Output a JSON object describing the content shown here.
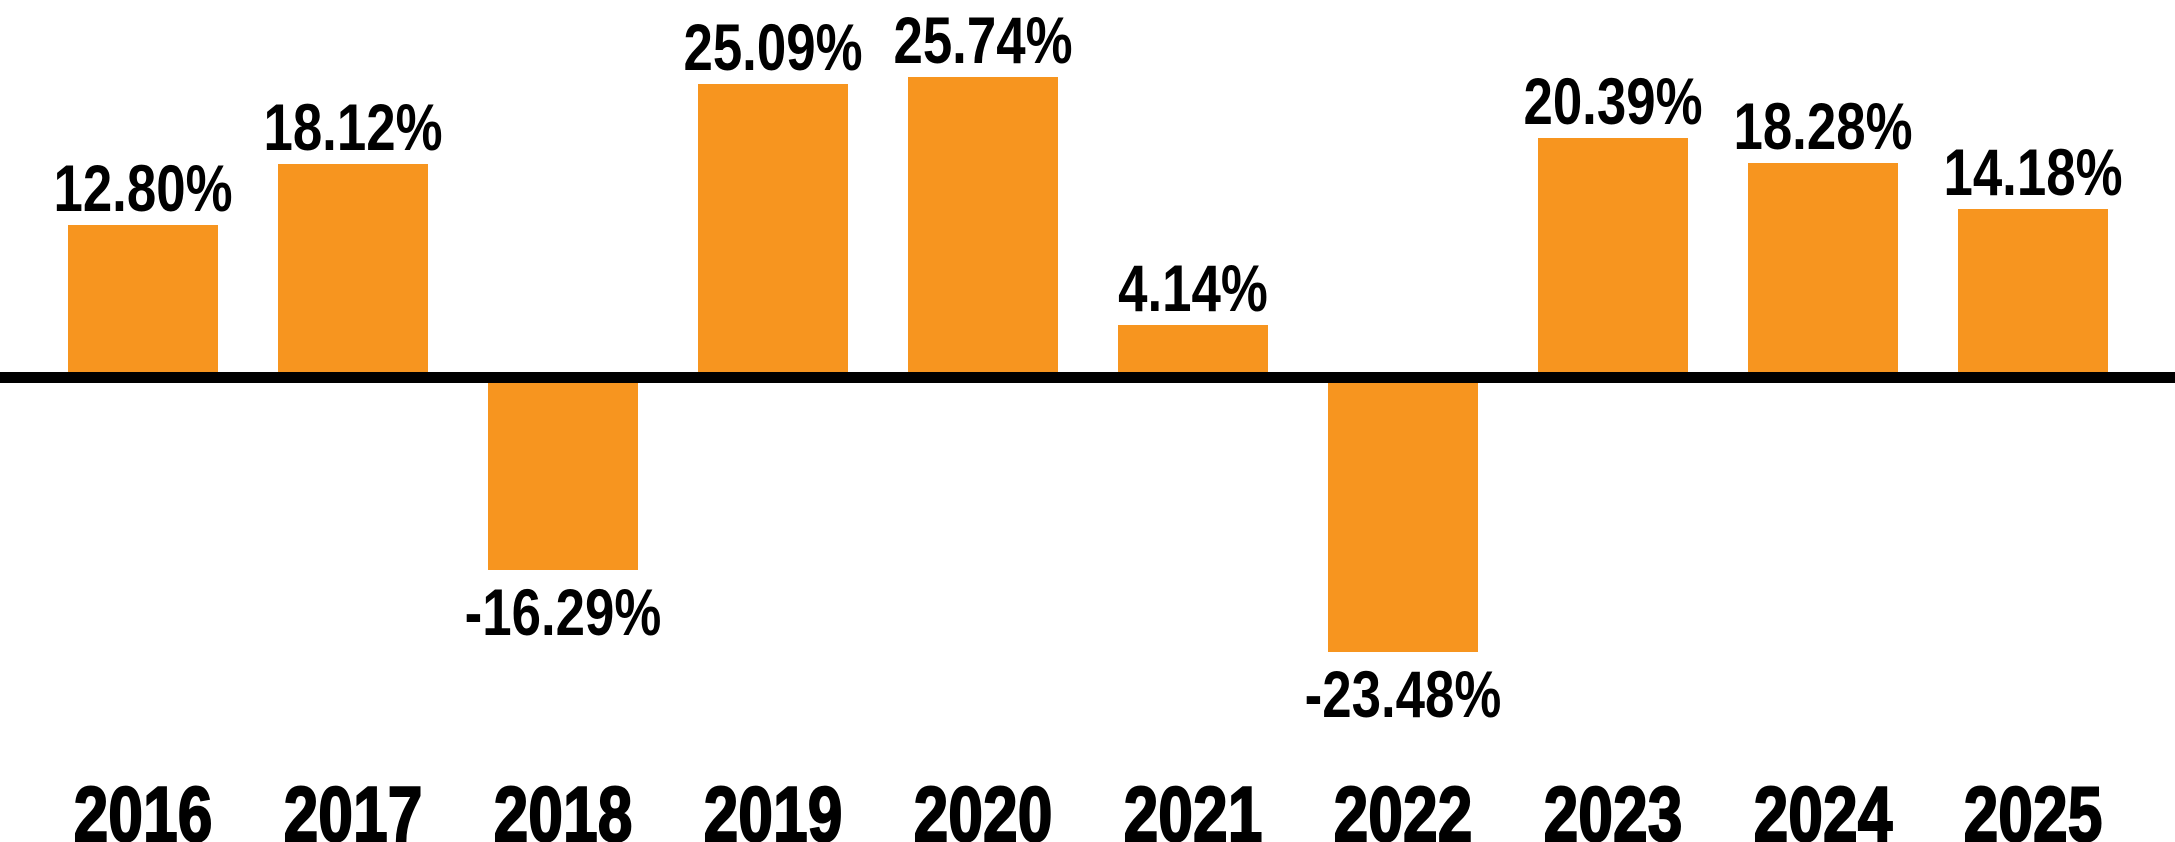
{
  "chart_data": {
    "type": "bar",
    "title": "",
    "xlabel": "",
    "ylabel": "",
    "categories": [
      "2016",
      "2017",
      "2018",
      "2019",
      "2020",
      "2021",
      "2022",
      "2023",
      "2024",
      "2025"
    ],
    "values": [
      12.8,
      18.12,
      -16.29,
      25.09,
      25.74,
      4.14,
      -23.48,
      20.39,
      18.28,
      14.18
    ],
    "value_labels": [
      "12.80%",
      "18.12%",
      "-16.29%",
      "25.09%",
      "25.74%",
      "4.14%",
      "-23.48%",
      "20.39%",
      "18.28%",
      "14.18%"
    ],
    "ylim": [
      -26,
      26
    ],
    "grid": false,
    "legend": false,
    "baseline": 0,
    "bar_color": "#F7951F",
    "label_color": "#000000",
    "axis_line_color": "#000000"
  }
}
